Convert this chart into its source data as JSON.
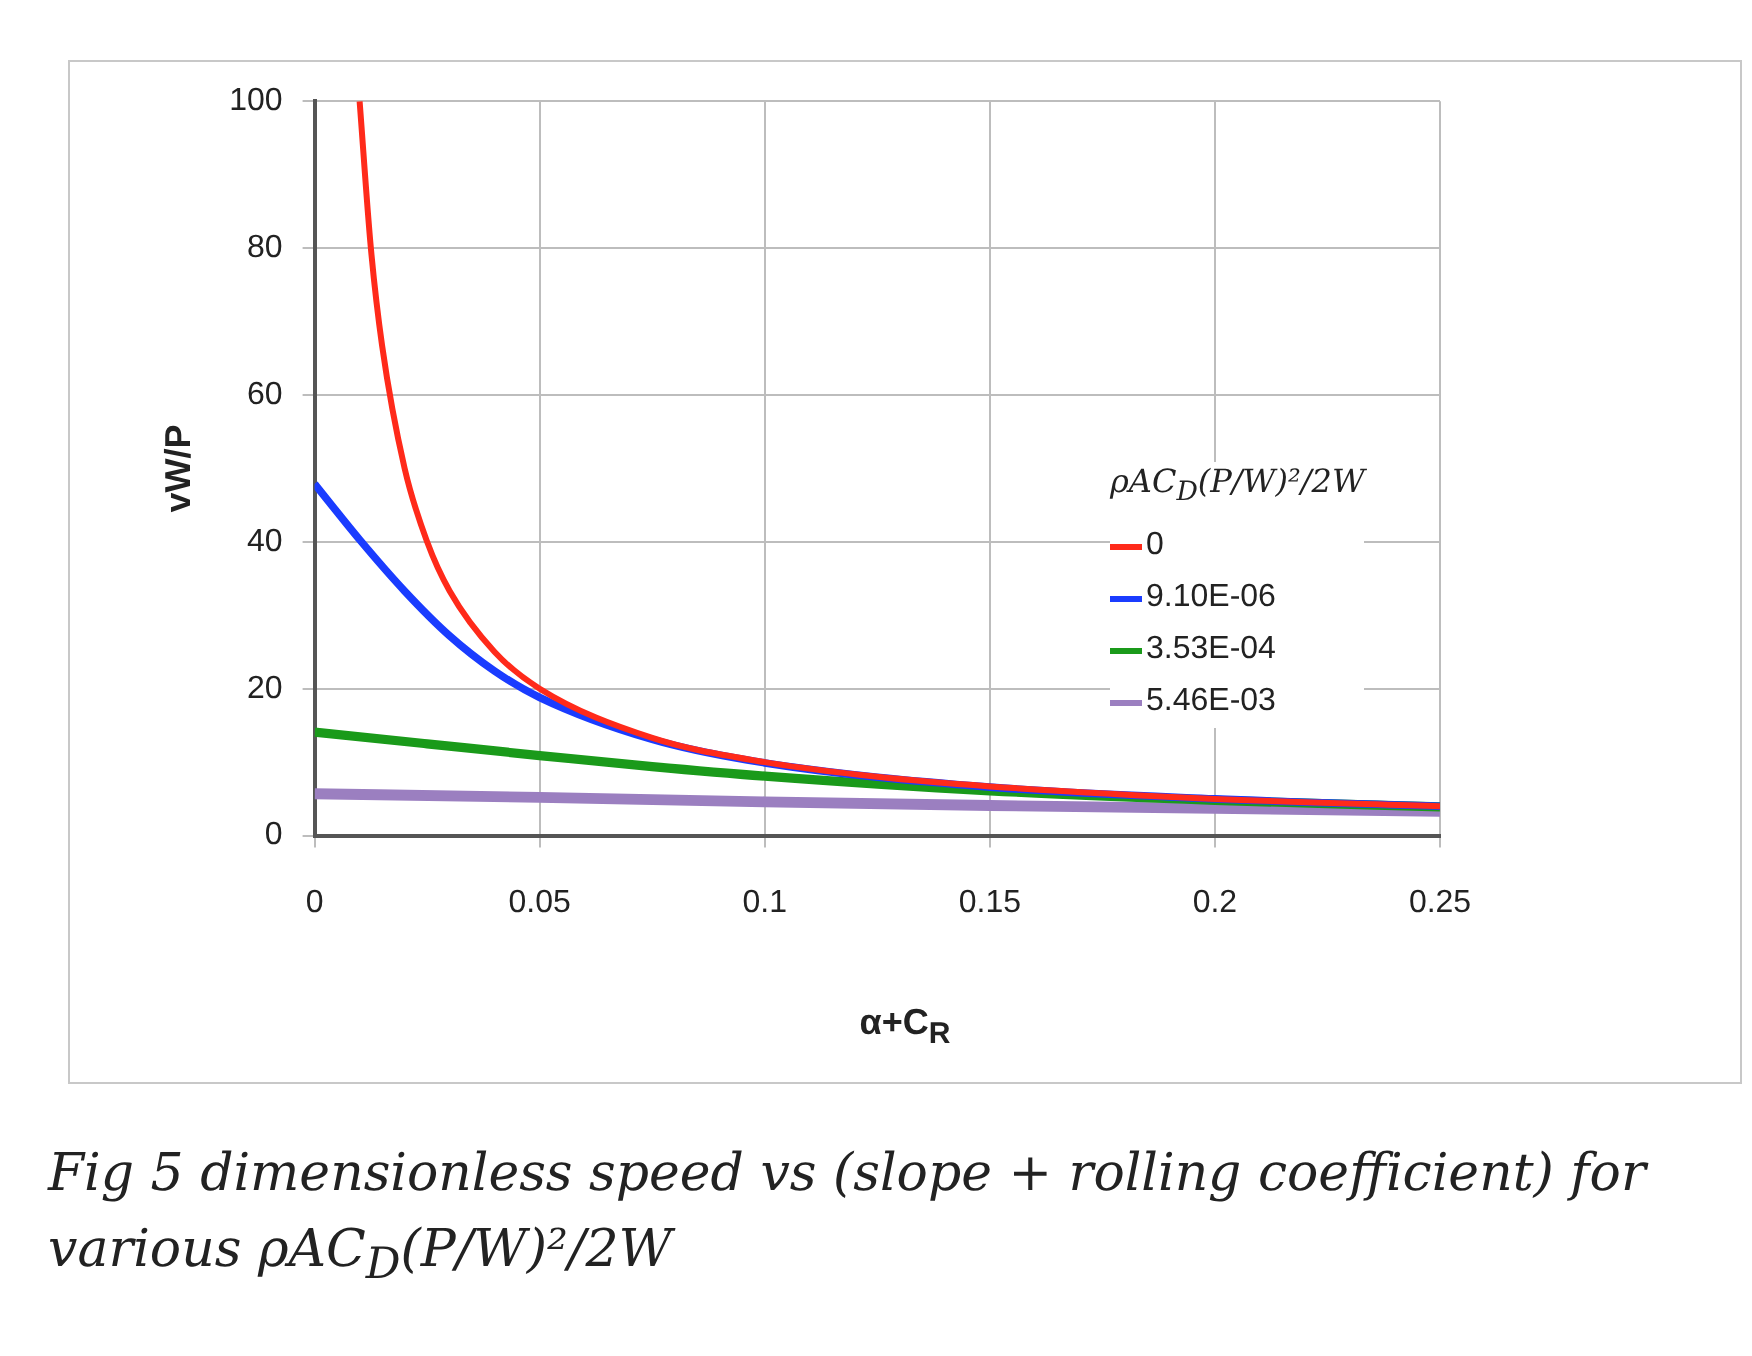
{
  "chart_data": {
    "type": "line",
    "xlabel": "α+C$_{R}$",
    "ylabel": "vW/P",
    "legend_title": "ρAC$_{D}$(P/W)²/2W",
    "legend": "right",
    "grid": true,
    "marker": "none",
    "line_style": "solid",
    "xlim": [
      0,
      0.25
    ],
    "xticks": [
      0,
      0.05,
      0.1,
      0.15,
      0.2,
      0.25
    ],
    "ylim": [
      0,
      100
    ],
    "yticks": [
      0,
      20,
      40,
      60,
      80,
      100
    ],
    "series": [
      {
        "name": "0",
        "color": "#ff2a1a",
        "x": [
          0.01,
          0.0125,
          0.015,
          0.02,
          0.025,
          0.03,
          0.04,
          0.05,
          0.075,
          0.1,
          0.125,
          0.15,
          0.2,
          0.25
        ],
        "values": [
          100,
          80,
          66.7,
          50,
          40,
          33.3,
          25,
          20,
          13.3,
          10,
          8,
          6.7,
          5,
          4
        ]
      },
      {
        "name": "9.10E-06",
        "color": "#1a3cff",
        "x": [
          0,
          0.01,
          0.02,
          0.03,
          0.04,
          0.05,
          0.075,
          0.1,
          0.15,
          0.2,
          0.25
        ],
        "values": [
          47.9,
          40.3,
          33.3,
          27.2,
          22.4,
          18.8,
          13.1,
          9.9,
          6.6,
          5,
          4
        ]
      },
      {
        "name": "3.53E-04",
        "color": "#1a9a1a",
        "x": [
          0,
          0.025,
          0.05,
          0.075,
          0.1,
          0.15,
          0.2,
          0.25
        ],
        "values": [
          14.1,
          12.5,
          10.9,
          9.4,
          8.1,
          6.1,
          4.8,
          3.9
        ]
      },
      {
        "name": "5.46E-03",
        "color": "#9b7fc0",
        "x": [
          0,
          0.05,
          0.1,
          0.15,
          0.2,
          0.25
        ],
        "values": [
          5.7,
          5.2,
          4.6,
          4.1,
          3.7,
          3.3
        ]
      }
    ],
    "annotations": [
      "Fig 5 dimensionless speed vs (slope + rolling coefficient) for various ρAC$_{D}$(P/W)²/2W"
    ]
  }
}
